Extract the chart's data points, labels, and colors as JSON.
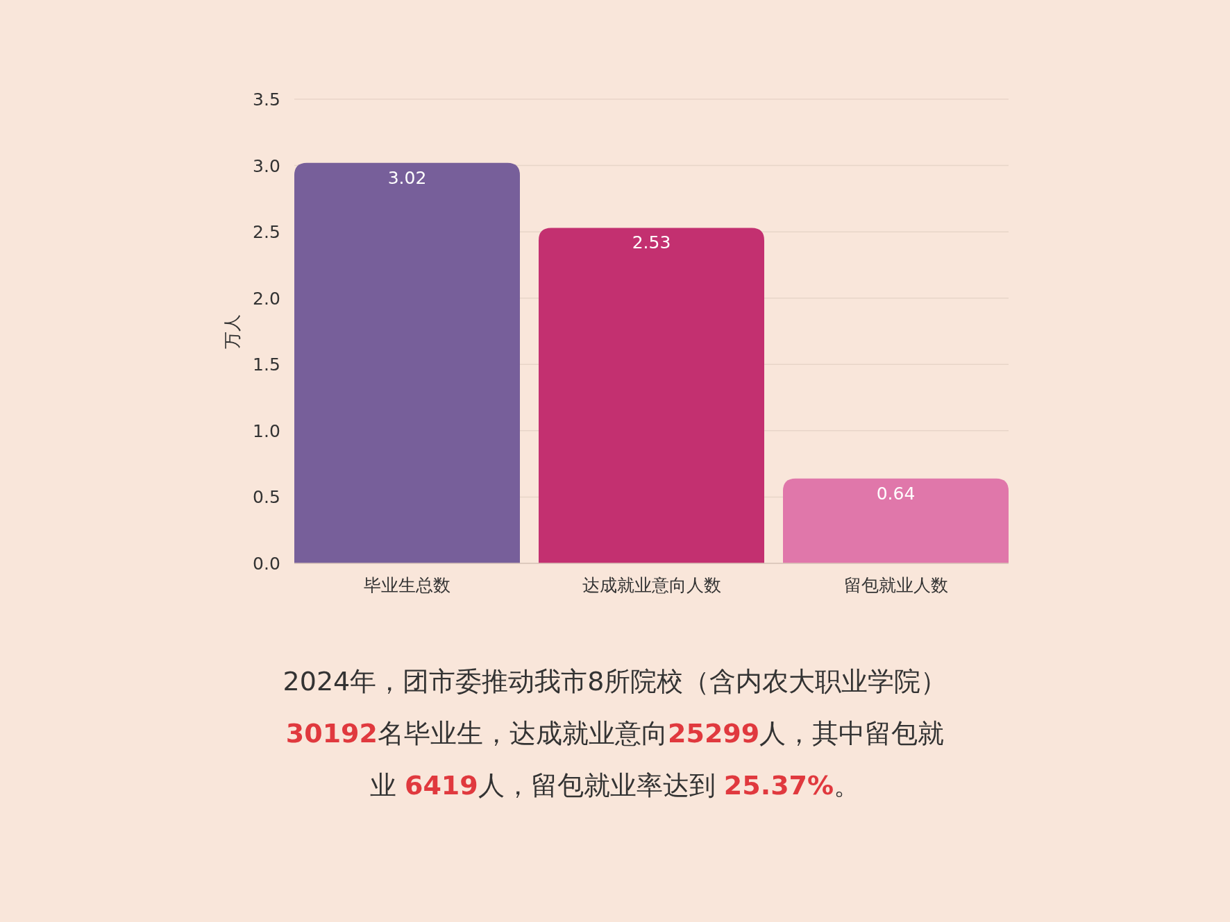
{
  "chart_data": {
    "type": "bar",
    "ylabel": "万人",
    "categories": [
      "毕业生总数",
      "达成就业意向人数",
      "留包就业人数"
    ],
    "values": [
      3.02,
      2.53,
      0.64
    ],
    "colors": [
      "#775f9a",
      "#c33070",
      "#e077aa"
    ],
    "ylim": [
      0,
      3.5
    ],
    "yticks": [
      {
        "value": 0,
        "label": "0.0"
      },
      {
        "value": 0.5,
        "label": "0.5"
      },
      {
        "value": 1,
        "label": "1.0"
      },
      {
        "value": 1.5,
        "label": "1.5"
      },
      {
        "value": 2,
        "label": "2.0"
      },
      {
        "value": 2.5,
        "label": "2.5"
      },
      {
        "value": 3,
        "label": "3.0"
      },
      {
        "value": 3.5,
        "label": "3.5"
      }
    ],
    "grid": "y",
    "data_labels": true,
    "annotations": [
      "2024年，团市委推动我市8所院校（含内农大职业学院）**30192**名毕业生，达成就业意向**25299**人，其中留包就业 **6419**人，留包就业率达到 **25.37%**。"
    ]
  }
}
